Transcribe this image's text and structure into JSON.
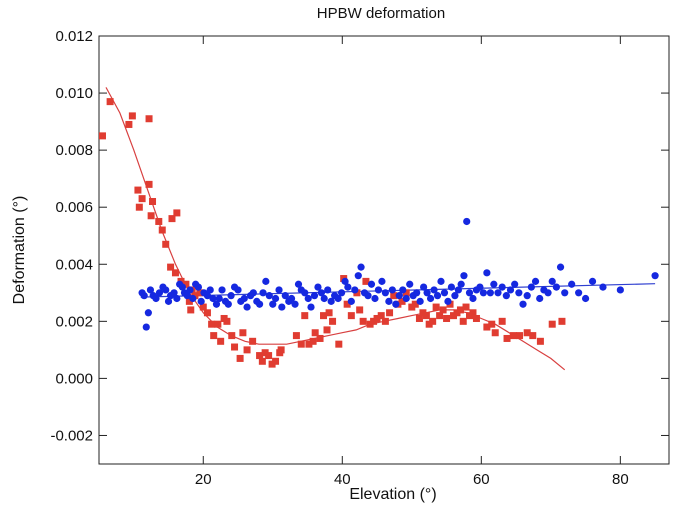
{
  "chart_data": {
    "type": "scatter",
    "title": "HPBW deformation",
    "xlabel": "Elevation (°)",
    "ylabel": "Deformation (°)",
    "xlim": [
      5,
      87
    ],
    "ylim": [
      -0.003,
      0.012
    ],
    "xticks": [
      20,
      40,
      60,
      80
    ],
    "xtick_labels": [
      "20",
      "40",
      "60",
      "80"
    ],
    "yticks": [
      -0.002,
      0.0,
      0.002,
      0.004,
      0.006,
      0.008,
      0.01,
      0.012
    ],
    "ytick_labels": [
      "-0.002",
      "0.000",
      "0.002",
      "0.004",
      "0.006",
      "0.008",
      "0.010",
      "0.012"
    ],
    "grid": false,
    "legend": "none",
    "series": [
      {
        "marker": "square",
        "color": "#e03c31",
        "points": [
          [
            5.5,
            0.0085
          ],
          [
            6.6,
            0.0097
          ],
          [
            9.3,
            0.0089
          ],
          [
            9.8,
            0.0092
          ],
          [
            10.6,
            0.0066
          ],
          [
            10.8,
            0.006
          ],
          [
            11.2,
            0.0063
          ],
          [
            12.2,
            0.0068
          ],
          [
            12.2,
            0.0091
          ],
          [
            12.5,
            0.0057
          ],
          [
            12.7,
            0.0062
          ],
          [
            13.6,
            0.0055
          ],
          [
            14.1,
            0.0052
          ],
          [
            14.6,
            0.0047
          ],
          [
            15.3,
            0.0039
          ],
          [
            15.5,
            0.0056
          ],
          [
            16.0,
            0.0037
          ],
          [
            16.2,
            0.0058
          ],
          [
            16.8,
            0.0034
          ],
          [
            17.5,
            0.0033
          ],
          [
            18.0,
            0.0027
          ],
          [
            18.2,
            0.0024
          ],
          [
            18.4,
            0.0031
          ],
          [
            18.8,
            0.0029
          ],
          [
            19.5,
            0.003
          ],
          [
            20.0,
            0.0025
          ],
          [
            20.6,
            0.0023
          ],
          [
            21.2,
            0.0019
          ],
          [
            21.5,
            0.0015
          ],
          [
            22.1,
            0.0019
          ],
          [
            22.5,
            0.0013
          ],
          [
            23.0,
            0.0021
          ],
          [
            23.4,
            0.002
          ],
          [
            24.1,
            0.0015
          ],
          [
            24.5,
            0.0011
          ],
          [
            25.3,
            0.0007
          ],
          [
            25.7,
            0.0016
          ],
          [
            26.3,
            0.001
          ],
          [
            27.1,
            0.0013
          ],
          [
            28.1,
            0.0008
          ],
          [
            28.5,
            0.0006
          ],
          [
            28.9,
            0.0009
          ],
          [
            29.4,
            0.0008
          ],
          [
            29.9,
            0.0005
          ],
          [
            30.4,
            0.0006
          ],
          [
            31.0,
            0.0009
          ],
          [
            31.2,
            0.001
          ],
          [
            33.4,
            0.0015
          ],
          [
            34.1,
            0.0012
          ],
          [
            34.6,
            0.0022
          ],
          [
            35.2,
            0.0012
          ],
          [
            35.8,
            0.0013
          ],
          [
            36.1,
            0.0016
          ],
          [
            36.8,
            0.0014
          ],
          [
            37.3,
            0.0022
          ],
          [
            37.8,
            0.0017
          ],
          [
            38.1,
            0.0023
          ],
          [
            38.6,
            0.002
          ],
          [
            39.5,
            0.0012
          ],
          [
            40.2,
            0.0035
          ],
          [
            40.7,
            0.0026
          ],
          [
            41.3,
            0.0022
          ],
          [
            42.1,
            0.003
          ],
          [
            42.5,
            0.0024
          ],
          [
            43.0,
            0.002
          ],
          [
            43.4,
            0.0034
          ],
          [
            44.0,
            0.0019
          ],
          [
            44.5,
            0.002
          ],
          [
            45.0,
            0.0021
          ],
          [
            45.6,
            0.0022
          ],
          [
            46.2,
            0.002
          ],
          [
            46.8,
            0.0023
          ],
          [
            47.4,
            0.0029
          ],
          [
            48.0,
            0.0026
          ],
          [
            48.6,
            0.0027
          ],
          [
            49.2,
            0.003
          ],
          [
            50.0,
            0.0025
          ],
          [
            50.5,
            0.0026
          ],
          [
            51.1,
            0.0021
          ],
          [
            51.6,
            0.0023
          ],
          [
            52.1,
            0.0022
          ],
          [
            52.5,
            0.0019
          ],
          [
            53.0,
            0.002
          ],
          [
            53.5,
            0.0025
          ],
          [
            54.0,
            0.0022
          ],
          [
            54.5,
            0.0024
          ],
          [
            55.0,
            0.0021
          ],
          [
            55.5,
            0.0026
          ],
          [
            56.0,
            0.0022
          ],
          [
            56.5,
            0.0023
          ],
          [
            57.0,
            0.0024
          ],
          [
            57.4,
            0.002
          ],
          [
            57.8,
            0.0025
          ],
          [
            58.3,
            0.0022
          ],
          [
            58.8,
            0.0023
          ],
          [
            59.3,
            0.0021
          ],
          [
            60.8,
            0.0018
          ],
          [
            61.5,
            0.0019
          ],
          [
            62.0,
            0.0016
          ],
          [
            63.0,
            0.002
          ],
          [
            63.7,
            0.0014
          ],
          [
            64.6,
            0.0015
          ],
          [
            65.5,
            0.0015
          ],
          [
            66.6,
            0.0016
          ],
          [
            67.4,
            0.0015
          ],
          [
            68.5,
            0.0013
          ],
          [
            70.2,
            0.0019
          ],
          [
            71.6,
            0.002
          ]
        ]
      },
      {
        "marker": "circle",
        "color": "#1528e0",
        "points": [
          [
            11.2,
            0.003
          ],
          [
            11.5,
            0.0029
          ],
          [
            11.8,
            0.0018
          ],
          [
            12.1,
            0.0023
          ],
          [
            12.4,
            0.0031
          ],
          [
            12.8,
            0.0029
          ],
          [
            13.2,
            0.0028
          ],
          [
            13.7,
            0.003
          ],
          [
            14.2,
            0.0032
          ],
          [
            14.6,
            0.0031
          ],
          [
            15.0,
            0.0027
          ],
          [
            15.3,
            0.0029
          ],
          [
            15.8,
            0.003
          ],
          [
            16.2,
            0.0028
          ],
          [
            16.6,
            0.0033
          ],
          [
            17.0,
            0.0032
          ],
          [
            17.3,
            0.003
          ],
          [
            17.7,
            0.0029
          ],
          [
            18.1,
            0.0031
          ],
          [
            18.5,
            0.0028
          ],
          [
            18.9,
            0.0033
          ],
          [
            19.3,
            0.0032
          ],
          [
            19.7,
            0.0027
          ],
          [
            20.1,
            0.003
          ],
          [
            20.6,
            0.0029
          ],
          [
            21.0,
            0.0031
          ],
          [
            21.4,
            0.0028
          ],
          [
            21.9,
            0.0026
          ],
          [
            22.3,
            0.0028
          ],
          [
            22.7,
            0.0031
          ],
          [
            23.2,
            0.0027
          ],
          [
            23.6,
            0.0026
          ],
          [
            24.0,
            0.0029
          ],
          [
            24.5,
            0.0032
          ],
          [
            25.0,
            0.0031
          ],
          [
            25.4,
            0.0027
          ],
          [
            25.9,
            0.0028
          ],
          [
            26.3,
            0.0025
          ],
          [
            26.8,
            0.0029
          ],
          [
            27.2,
            0.003
          ],
          [
            27.7,
            0.0027
          ],
          [
            28.1,
            0.0026
          ],
          [
            28.6,
            0.003
          ],
          [
            29.0,
            0.0034
          ],
          [
            29.5,
            0.0029
          ],
          [
            30.0,
            0.0026
          ],
          [
            30.4,
            0.0028
          ],
          [
            30.9,
            0.0031
          ],
          [
            31.3,
            0.0025
          ],
          [
            31.8,
            0.0029
          ],
          [
            32.3,
            0.0027
          ],
          [
            32.7,
            0.0028
          ],
          [
            33.2,
            0.0026
          ],
          [
            33.7,
            0.0033
          ],
          [
            34.1,
            0.0031
          ],
          [
            34.6,
            0.003
          ],
          [
            35.1,
            0.0028
          ],
          [
            35.5,
            0.0025
          ],
          [
            36.0,
            0.0029
          ],
          [
            36.5,
            0.0032
          ],
          [
            37.0,
            0.003
          ],
          [
            37.4,
            0.0028
          ],
          [
            37.9,
            0.0031
          ],
          [
            38.4,
            0.0027
          ],
          [
            38.9,
            0.0029
          ],
          [
            39.4,
            0.0028
          ],
          [
            39.9,
            0.003
          ],
          [
            40.4,
            0.0034
          ],
          [
            40.8,
            0.0032
          ],
          [
            41.3,
            0.0027
          ],
          [
            41.8,
            0.0031
          ],
          [
            42.3,
            0.0036
          ],
          [
            42.7,
            0.0039
          ],
          [
            43.2,
            0.003
          ],
          [
            43.7,
            0.0029
          ],
          [
            44.2,
            0.0033
          ],
          [
            44.7,
            0.0028
          ],
          [
            45.2,
            0.0031
          ],
          [
            45.7,
            0.0034
          ],
          [
            46.2,
            0.003
          ],
          [
            46.7,
            0.0027
          ],
          [
            47.2,
            0.0031
          ],
          [
            47.7,
            0.0026
          ],
          [
            48.2,
            0.0029
          ],
          [
            48.7,
            0.0031
          ],
          [
            49.2,
            0.0028
          ],
          [
            49.7,
            0.0033
          ],
          [
            50.2,
            0.0029
          ],
          [
            50.7,
            0.003
          ],
          [
            51.2,
            0.0027
          ],
          [
            51.7,
            0.0032
          ],
          [
            52.2,
            0.003
          ],
          [
            52.7,
            0.0028
          ],
          [
            53.2,
            0.0031
          ],
          [
            53.7,
            0.0029
          ],
          [
            54.2,
            0.0034
          ],
          [
            54.7,
            0.003
          ],
          [
            55.2,
            0.0027
          ],
          [
            55.7,
            0.0032
          ],
          [
            56.2,
            0.0029
          ],
          [
            56.7,
            0.0031
          ],
          [
            57.1,
            0.0033
          ],
          [
            57.5,
            0.0036
          ],
          [
            57.9,
            0.0055
          ],
          [
            58.3,
            0.003
          ],
          [
            58.8,
            0.0028
          ],
          [
            59.3,
            0.0031
          ],
          [
            59.8,
            0.0032
          ],
          [
            60.3,
            0.003
          ],
          [
            60.8,
            0.0037
          ],
          [
            61.3,
            0.003
          ],
          [
            61.8,
            0.0033
          ],
          [
            62.4,
            0.003
          ],
          [
            63.0,
            0.0032
          ],
          [
            63.6,
            0.0029
          ],
          [
            64.2,
            0.0031
          ],
          [
            64.8,
            0.0033
          ],
          [
            65.4,
            0.003
          ],
          [
            66.0,
            0.0026
          ],
          [
            66.6,
            0.0029
          ],
          [
            67.2,
            0.0032
          ],
          [
            67.8,
            0.0034
          ],
          [
            68.4,
            0.0028
          ],
          [
            69.0,
            0.0031
          ],
          [
            69.6,
            0.003
          ],
          [
            70.2,
            0.0034
          ],
          [
            70.8,
            0.0032
          ],
          [
            71.4,
            0.0039
          ],
          [
            72.0,
            0.003
          ],
          [
            73.0,
            0.0033
          ],
          [
            74.0,
            0.003
          ],
          [
            75.0,
            0.0028
          ],
          [
            76.0,
            0.0034
          ],
          [
            77.5,
            0.0032
          ],
          [
            80.0,
            0.0031
          ],
          [
            85.0,
            0.0036
          ]
        ]
      }
    ],
    "fit_curves": [
      {
        "color": "#d84040",
        "points": [
          [
            6,
            0.0102
          ],
          [
            8,
            0.0093
          ],
          [
            10,
            0.008
          ],
          [
            12,
            0.0066
          ],
          [
            14,
            0.0052
          ],
          [
            16,
            0.004
          ],
          [
            18,
            0.003
          ],
          [
            20,
            0.0023
          ],
          [
            22,
            0.0018
          ],
          [
            24,
            0.0015
          ],
          [
            26,
            0.0013
          ],
          [
            28,
            0.0012
          ],
          [
            30,
            0.0012
          ],
          [
            32,
            0.0012
          ],
          [
            34,
            0.0013
          ],
          [
            36,
            0.0014
          ],
          [
            38,
            0.0015
          ],
          [
            40,
            0.0016
          ],
          [
            42,
            0.0017
          ],
          [
            44,
            0.0019
          ],
          [
            46,
            0.002
          ],
          [
            48,
            0.0021
          ],
          [
            50,
            0.0022
          ],
          [
            52,
            0.0023
          ],
          [
            54,
            0.0024
          ],
          [
            56,
            0.0024
          ],
          [
            58,
            0.0023
          ],
          [
            60,
            0.0021
          ],
          [
            62,
            0.0019
          ],
          [
            64,
            0.0016
          ],
          [
            66,
            0.0013
          ],
          [
            68,
            0.001
          ],
          [
            70,
            0.0007
          ],
          [
            72,
            0.0003
          ]
        ]
      },
      {
        "color": "#3040d0",
        "points": [
          [
            11,
            0.00285
          ],
          [
            85,
            0.00332
          ]
        ]
      }
    ]
  }
}
